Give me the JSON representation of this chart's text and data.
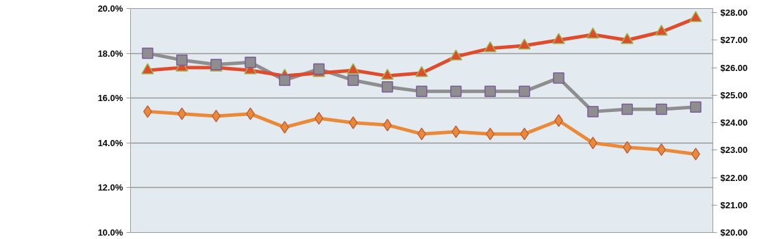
{
  "chart_data": {
    "type": "line",
    "categories": [
      null,
      null,
      null,
      null,
      null,
      null,
      null,
      null,
      null,
      null,
      null,
      null,
      null,
      null,
      null,
      null,
      null
    ],
    "series": [
      {
        "color": "#8e8e8e",
        "marker": "square",
        "values": [
          18.0,
          17.7,
          17.5,
          17.6,
          16.8,
          17.3,
          16.8,
          16.5,
          16.3,
          16.3,
          16.3,
          16.3,
          16.9,
          15.4,
          15.5,
          15.5,
          15.6
        ]
      },
      {
        "color": "#ea8a38",
        "marker": "diamond",
        "values": [
          15.4,
          15.3,
          15.2,
          15.3,
          14.7,
          15.1,
          14.9,
          14.8,
          14.4,
          14.5,
          14.4,
          14.4,
          15.0,
          14.0,
          13.8,
          13.7,
          13.5
        ]
      },
      {
        "color": "#e04b2b",
        "marker": "triangle",
        "axis": "y2",
        "values": [
          25.9,
          26.0,
          26.0,
          25.9,
          25.7,
          25.8,
          25.9,
          25.7,
          25.8,
          26.4,
          26.7,
          26.8,
          27.0,
          27.2,
          27.0,
          27.3,
          27.8
        ]
      }
    ],
    "ylim": [
      10,
      20
    ],
    "yticks": [
      {
        "value": 10,
        "label": "10.0%"
      },
      {
        "value": 12,
        "label": "12.0%"
      },
      {
        "value": 14,
        "label": "14.0%"
      },
      {
        "value": 16,
        "label": "16.0%"
      },
      {
        "value": 18,
        "label": "18.0%"
      },
      {
        "value": 20,
        "label": "20.0%"
      }
    ],
    "y2lim": [
      20,
      28.15
    ],
    "y2ticks": [
      {
        "value": 20,
        "label": "$20.00"
      },
      {
        "value": 21,
        "label": "$21.00"
      },
      {
        "value": 22,
        "label": "$22.00"
      },
      {
        "value": 23,
        "label": "$23.00"
      },
      {
        "value": 24,
        "label": "$24.00"
      },
      {
        "value": 25,
        "label": "$25.00"
      },
      {
        "value": 26,
        "label": "$26.00"
      },
      {
        "value": 27,
        "label": "$27.00"
      },
      {
        "value": 28,
        "label": "$28.00"
      }
    ],
    "grid": "y",
    "line_style": "solid",
    "tick_labels": "y"
  }
}
